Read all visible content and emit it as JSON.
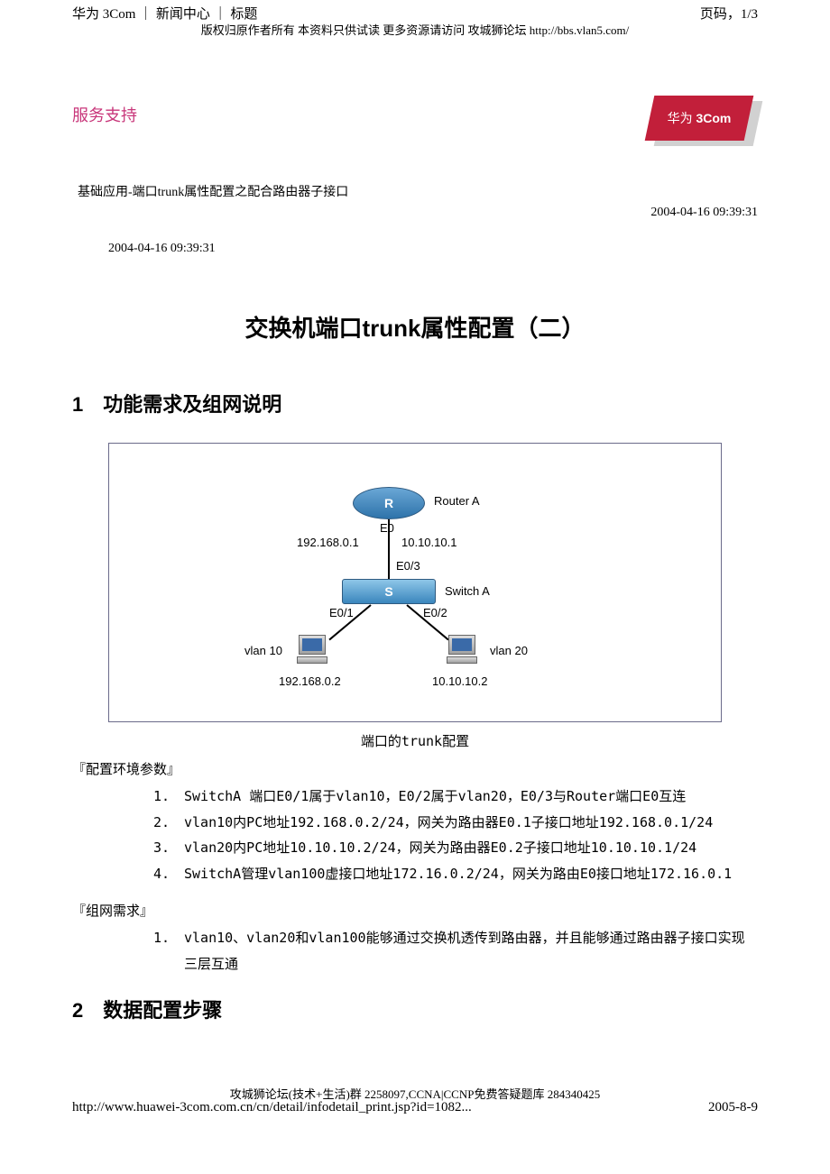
{
  "header": {
    "breadcrumb": "华为 3Com ｜ 新闻中心 ｜ 标题",
    "page_indicator": "页码，1/3",
    "copyright": "版权归原作者所有 本资料只供试读 更多资源请访问 攻城狮论坛 http://bbs.vlan5.com/"
  },
  "service_support": "服务支持",
  "logo": {
    "text_cn": "华为",
    "text_en": "3Com"
  },
  "article": {
    "breadcrumb": "基础应用-端口trunk属性配置之配合路由器子接口",
    "timestamp_right": "2004-04-16 09:39:31",
    "timestamp_left": "2004-04-16 09:39:31",
    "title": "交换机端口trunk属性配置（二）"
  },
  "section1": {
    "num": "1",
    "title": "功能需求及组网说明"
  },
  "diagram": {
    "caption": "端口的trunk配置",
    "router_label": "R",
    "router_name": "Router A",
    "router_port": "E0",
    "ip_left_top": "192.168.0.1",
    "ip_right_top": "10.10.10.1",
    "link_top": "E0/3",
    "switch_label": "S",
    "switch_name": "Switch A",
    "port_left": "E0/1",
    "port_right": "E0/2",
    "vlan_left": "vlan 10",
    "vlan_right": "vlan 20",
    "ip_left_bottom": "192.168.0.2",
    "ip_right_bottom": "10.10.10.2"
  },
  "env_label": "『配置环境参数』",
  "env_items": [
    "SwitchA 端口E0/1属于vlan10，E0/2属于vlan20，E0/3与Router端口E0互连",
    "vlan10内PC地址192.168.0.2/24，网关为路由器E0.1子接口地址192.168.0.1/24",
    "vlan20内PC地址10.10.10.2/24，网关为路由器E0.2子接口地址10.10.10.1/24",
    "SwitchA管理vlan100虚接口地址172.16.0.2/24，网关为路由E0接口地址172.16.0.1"
  ],
  "req_label": "『组网需求』",
  "req_items": [
    "vlan10、vlan20和vlan100能够通过交换机透传到路由器，并且能够通过路由器子接口实现三层互通"
  ],
  "section2": {
    "num": "2",
    "title": "数据配置步骤"
  },
  "footer": {
    "line1": "攻城狮论坛(技术+生活)群 2258097,CCNA|CCNP免费答疑题库 284340425",
    "url": "http://www.huawei-3com.com.cn/cn/detail/infodetail_print.jsp?id=1082...",
    "date": "2005-8-9"
  },
  "colors": {
    "accent": "#c8367a",
    "logo_red": "#c21f3a",
    "diagram_border": "#6a6a8a",
    "device_blue_top": "#8ec6e8",
    "device_blue_bottom": "#3a86bd"
  }
}
